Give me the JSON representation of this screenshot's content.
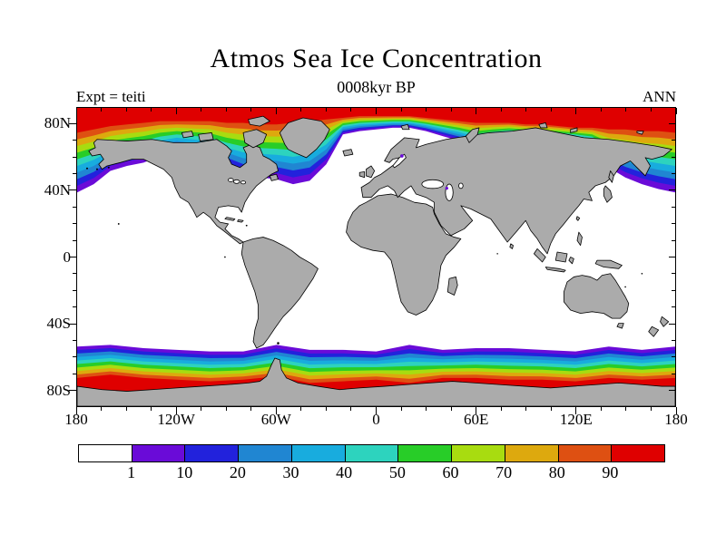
{
  "header": {
    "title": "Atmos Sea Ice Concentration",
    "subtitle": "0008kyr BP",
    "experiment_label": "Expt = teiti",
    "season_label": "ANN"
  },
  "chart_data": {
    "type": "heatmap",
    "title": "Atmos Sea Ice Concentration",
    "subtitle": "0008kyr BP",
    "experiment": "teiti",
    "season": "ANN",
    "variable": "sea ice concentration (percent)",
    "projection": "equirectangular world map",
    "lon_range": [
      -180,
      180
    ],
    "lat_range": [
      -90,
      90
    ],
    "ocean_color": "#FFFFFF",
    "land_color": "#ABABAB",
    "coast_color": "#000000",
    "colorbar": {
      "levels": [
        "1",
        "10",
        "20",
        "30",
        "40",
        "50",
        "60",
        "70",
        "80",
        "90"
      ],
      "colors": [
        "#FFFFFF",
        "#6A0BD8",
        "#2222DC",
        "#2086D2",
        "#18ACDE",
        "#2DD3BE",
        "#28CD28",
        "#A8DC10",
        "#DDA90E",
        "#DE5012",
        "#DF0000"
      ]
    },
    "axes": {
      "lon_labels": [
        {
          "deg": -180,
          "text": "180"
        },
        {
          "deg": -120,
          "text": "120W"
        },
        {
          "deg": -60,
          "text": "60W"
        },
        {
          "deg": 0,
          "text": "0"
        },
        {
          "deg": 60,
          "text": "60E"
        },
        {
          "deg": 120,
          "text": "120E"
        },
        {
          "deg": 180,
          "text": "180"
        }
      ],
      "lat_labels": [
        {
          "deg": 80,
          "text": "80N"
        },
        {
          "deg": 40,
          "text": "40N"
        },
        {
          "deg": 0,
          "text": "0"
        },
        {
          "deg": -40,
          "text": "40S"
        },
        {
          "deg": -80,
          "text": "80S"
        }
      ],
      "lon_minor_step": 15,
      "lon_major_step": 60,
      "lat_minor_step": 10,
      "lat_major_step": 40
    },
    "ice_extent_contours": {
      "arctic": {
        "lon": [
          -180,
          -170,
          -160,
          -150,
          -140,
          -130,
          -120,
          -110,
          -100,
          -90,
          -80,
          -70,
          -60,
          -50,
          -40,
          -30,
          -20,
          -10,
          0,
          10,
          20,
          30,
          40,
          50,
          60,
          70,
          80,
          90,
          100,
          110,
          120,
          130,
          140,
          150,
          160,
          170,
          180
        ],
        "edge_1pct_lat": [
          39,
          44,
          52,
          55,
          57,
          61,
          64,
          62,
          60,
          54,
          49,
          48,
          47,
          44,
          46,
          56,
          74,
          76,
          77,
          78,
          78,
          76,
          73,
          70,
          66,
          69,
          71,
          71,
          70,
          70,
          69,
          66,
          54,
          48,
          44,
          41,
          39
        ],
        "edge_90pct_lat": [
          75,
          77,
          79,
          80,
          81,
          82,
          82,
          82,
          82,
          81,
          81,
          80,
          80,
          81,
          82,
          83,
          84,
          85,
          85,
          85,
          85,
          84,
          83,
          82,
          81,
          81,
          81,
          80,
          80,
          79,
          78,
          78,
          77,
          77,
          76,
          76,
          75
        ]
      },
      "antarctic": {
        "lon": [
          -180,
          -160,
          -140,
          -120,
          -100,
          -80,
          -60,
          -40,
          -20,
          0,
          20,
          40,
          60,
          80,
          100,
          120,
          140,
          160,
          180
        ],
        "edge_1pct_lat": [
          -54,
          -53,
          -55,
          -56,
          -57,
          -57,
          -53,
          -56,
          -56,
          -57,
          -53,
          -56,
          -55,
          -55,
          -56,
          -57,
          -54,
          -56,
          -54
        ],
        "edge_90pct_lat": [
          -73,
          -71,
          -73,
          -74,
          -75,
          -74,
          -72,
          -76,
          -75,
          -74,
          -76,
          -73,
          -73,
          -74,
          -74,
          -75,
          -73,
          -74,
          -73
        ]
      }
    }
  }
}
